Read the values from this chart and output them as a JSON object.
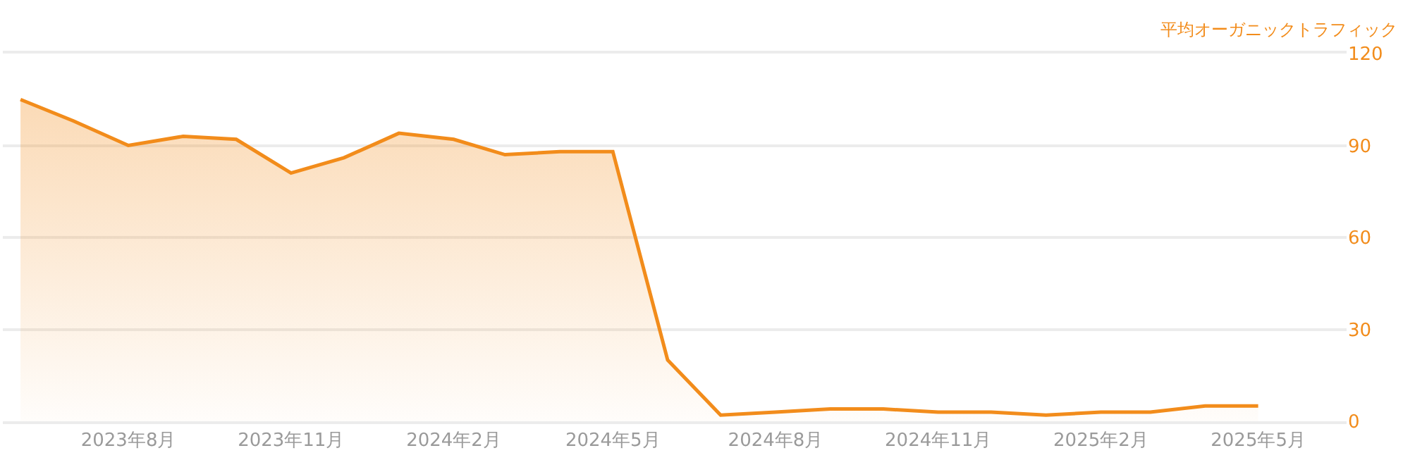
{
  "chart_data": {
    "type": "area",
    "ylabel": "平均オーガニックトラフィック",
    "x": [
      "2023-06",
      "2023-07",
      "2023-08",
      "2023-09",
      "2023-10",
      "2023-11",
      "2023-12",
      "2024-01",
      "2024-02",
      "2024-03",
      "2024-04",
      "2024-05",
      "2024-06",
      "2024-07",
      "2024-08",
      "2024-09",
      "2024-10",
      "2024-11",
      "2024-12",
      "2025-01",
      "2025-02",
      "2025-03",
      "2025-04",
      "2025-05"
    ],
    "series": [
      {
        "color": "#f28c1b",
        "values": [
          105,
          98,
          90,
          93,
          92,
          81,
          86,
          94,
          92,
          87,
          88,
          88,
          20,
          2,
          3,
          4,
          4,
          3,
          3,
          2,
          3,
          3,
          5,
          5
        ]
      }
    ],
    "xlim": [
      "2023-05-22",
      "2025-06-20"
    ],
    "xticks": [
      {
        "value": "2023-08",
        "label": "2023年8月"
      },
      {
        "value": "2023-11",
        "label": "2023年11月"
      },
      {
        "value": "2024-02",
        "label": "2024年2月"
      },
      {
        "value": "2024-05",
        "label": "2024年5月"
      },
      {
        "value": "2024-08",
        "label": "2024年8月"
      },
      {
        "value": "2024-11",
        "label": "2024年11月"
      },
      {
        "value": "2025-02",
        "label": "2025年2月"
      },
      {
        "value": "2025-05",
        "label": "2025年5月"
      }
    ],
    "ylim": [
      0,
      120
    ],
    "yticks": [
      0,
      30,
      60,
      90,
      120
    ],
    "grid": "y"
  }
}
